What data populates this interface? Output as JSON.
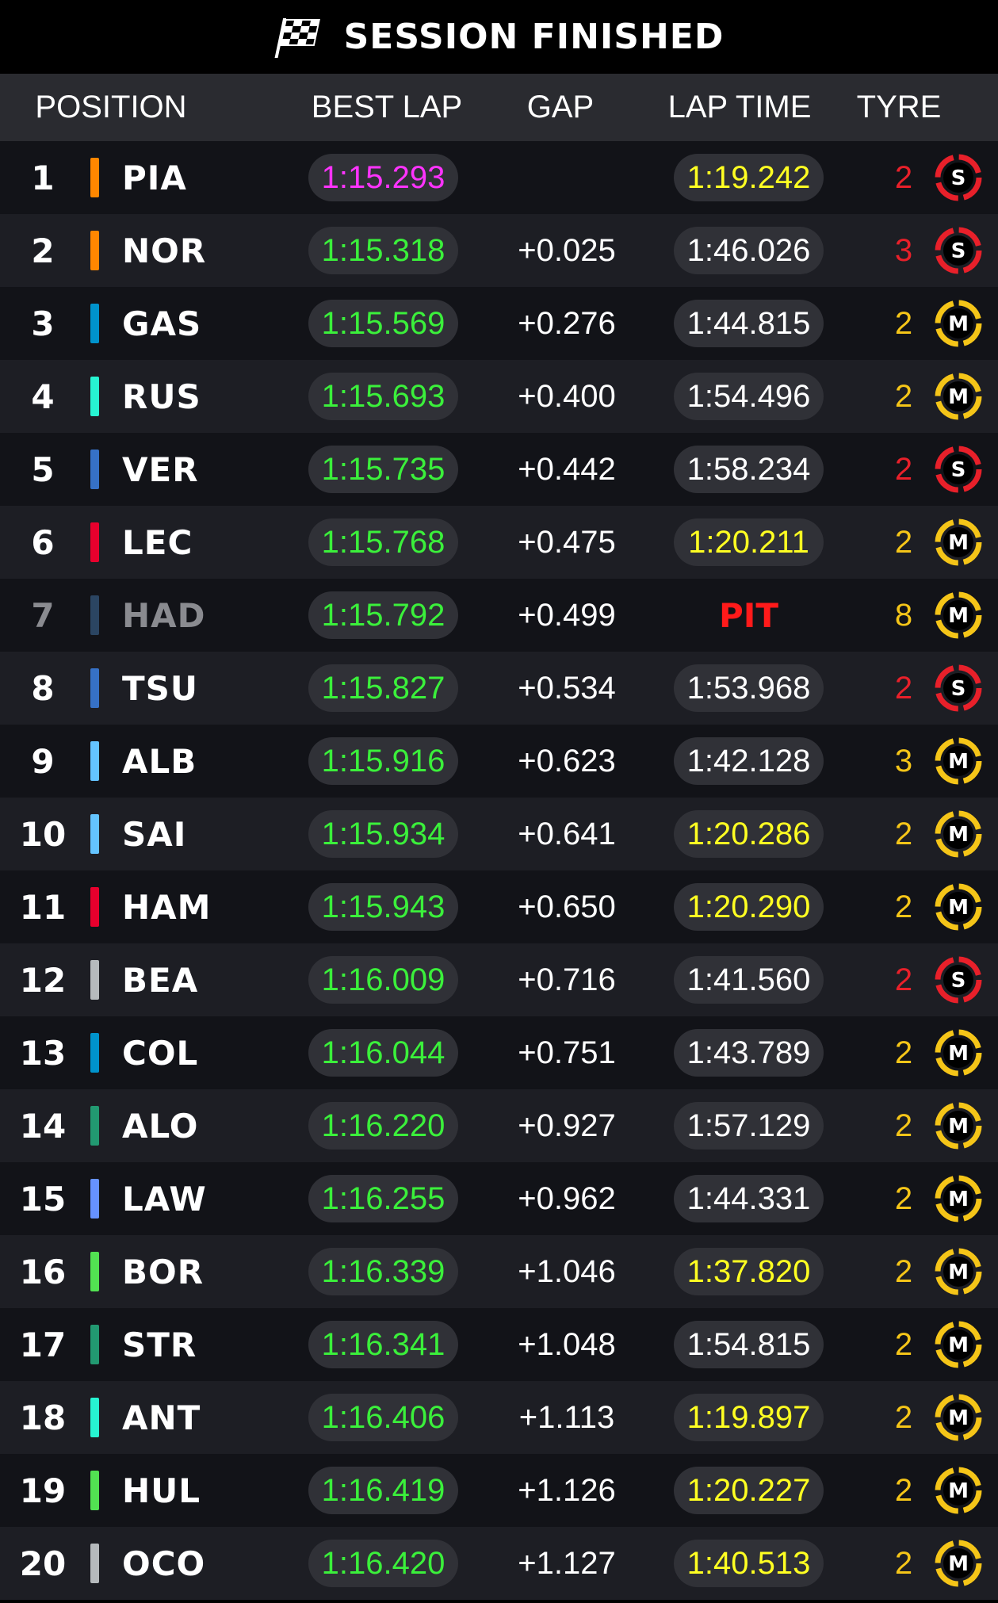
{
  "banner": {
    "title": "SESSION FINISHED",
    "icon": "checkered-flag-icon"
  },
  "header": {
    "position": "POSITION",
    "best_lap": "BEST LAP",
    "gap": "GAP",
    "lap_time": "LAP TIME",
    "tyre": "TYRE"
  },
  "tyre_colors": {
    "S": "#e8202a",
    "M": "#f5c518"
  },
  "rows": [
    {
      "pos": "1",
      "driver": "PIA",
      "team_color": "#ff8700",
      "best": "1:15.293",
      "best_fastest": true,
      "gap": "",
      "lap": "1:19.242",
      "lap_personal": true,
      "tyre_age": "2",
      "tyre": "S"
    },
    {
      "pos": "2",
      "driver": "NOR",
      "team_color": "#ff8700",
      "best": "1:15.318",
      "best_fastest": false,
      "gap": "+0.025",
      "lap": "1:46.026",
      "lap_personal": false,
      "tyre_age": "3",
      "tyre": "S"
    },
    {
      "pos": "3",
      "driver": "GAS",
      "team_color": "#0093cc",
      "best": "1:15.569",
      "best_fastest": false,
      "gap": "+0.276",
      "lap": "1:44.815",
      "lap_personal": false,
      "tyre_age": "2",
      "tyre": "M"
    },
    {
      "pos": "4",
      "driver": "RUS",
      "team_color": "#27f4d2",
      "best": "1:15.693",
      "best_fastest": false,
      "gap": "+0.400",
      "lap": "1:54.496",
      "lap_personal": false,
      "tyre_age": "2",
      "tyre": "M"
    },
    {
      "pos": "5",
      "driver": "VER",
      "team_color": "#3671c6",
      "best": "1:15.735",
      "best_fastest": false,
      "gap": "+0.442",
      "lap": "1:58.234",
      "lap_personal": false,
      "tyre_age": "2",
      "tyre": "S"
    },
    {
      "pos": "6",
      "driver": "LEC",
      "team_color": "#e8002d",
      "best": "1:15.768",
      "best_fastest": false,
      "gap": "+0.475",
      "lap": "1:20.211",
      "lap_personal": true,
      "tyre_age": "2",
      "tyre": "M"
    },
    {
      "pos": "7",
      "driver": "HAD",
      "team_color": "#2b4562",
      "best": "1:15.792",
      "best_fastest": false,
      "gap": "+0.499",
      "lap": "PIT",
      "lap_personal": false,
      "tyre_age": "8",
      "tyre": "M",
      "in_pit": true
    },
    {
      "pos": "8",
      "driver": "TSU",
      "team_color": "#3671c6",
      "best": "1:15.827",
      "best_fastest": false,
      "gap": "+0.534",
      "lap": "1:53.968",
      "lap_personal": false,
      "tyre_age": "2",
      "tyre": "S"
    },
    {
      "pos": "9",
      "driver": "ALB",
      "team_color": "#64c4ff",
      "best": "1:15.916",
      "best_fastest": false,
      "gap": "+0.623",
      "lap": "1:42.128",
      "lap_personal": false,
      "tyre_age": "3",
      "tyre": "M"
    },
    {
      "pos": "10",
      "driver": "SAI",
      "team_color": "#64c4ff",
      "best": "1:15.934",
      "best_fastest": false,
      "gap": "+0.641",
      "lap": "1:20.286",
      "lap_personal": true,
      "tyre_age": "2",
      "tyre": "M"
    },
    {
      "pos": "11",
      "driver": "HAM",
      "team_color": "#e8002d",
      "best": "1:15.943",
      "best_fastest": false,
      "gap": "+0.650",
      "lap": "1:20.290",
      "lap_personal": true,
      "tyre_age": "2",
      "tyre": "M"
    },
    {
      "pos": "12",
      "driver": "BEA",
      "team_color": "#b6babd",
      "best": "1:16.009",
      "best_fastest": false,
      "gap": "+0.716",
      "lap": "1:41.560",
      "lap_personal": false,
      "tyre_age": "2",
      "tyre": "S"
    },
    {
      "pos": "13",
      "driver": "COL",
      "team_color": "#0093cc",
      "best": "1:16.044",
      "best_fastest": false,
      "gap": "+0.751",
      "lap": "1:43.789",
      "lap_personal": false,
      "tyre_age": "2",
      "tyre": "M"
    },
    {
      "pos": "14",
      "driver": "ALO",
      "team_color": "#229971",
      "best": "1:16.220",
      "best_fastest": false,
      "gap": "+0.927",
      "lap": "1:57.129",
      "lap_personal": false,
      "tyre_age": "2",
      "tyre": "M"
    },
    {
      "pos": "15",
      "driver": "LAW",
      "team_color": "#6692ff",
      "best": "1:16.255",
      "best_fastest": false,
      "gap": "+0.962",
      "lap": "1:44.331",
      "lap_personal": false,
      "tyre_age": "2",
      "tyre": "M"
    },
    {
      "pos": "16",
      "driver": "BOR",
      "team_color": "#52e252",
      "best": "1:16.339",
      "best_fastest": false,
      "gap": "+1.046",
      "lap": "1:37.820",
      "lap_personal": true,
      "tyre_age": "2",
      "tyre": "M"
    },
    {
      "pos": "17",
      "driver": "STR",
      "team_color": "#229971",
      "best": "1:16.341",
      "best_fastest": false,
      "gap": "+1.048",
      "lap": "1:54.815",
      "lap_personal": false,
      "tyre_age": "2",
      "tyre": "M"
    },
    {
      "pos": "18",
      "driver": "ANT",
      "team_color": "#27f4d2",
      "best": "1:16.406",
      "best_fastest": false,
      "gap": "+1.113",
      "lap": "1:19.897",
      "lap_personal": true,
      "tyre_age": "2",
      "tyre": "M"
    },
    {
      "pos": "19",
      "driver": "HUL",
      "team_color": "#52e252",
      "best": "1:16.419",
      "best_fastest": false,
      "gap": "+1.126",
      "lap": "1:20.227",
      "lap_personal": true,
      "tyre_age": "2",
      "tyre": "M"
    },
    {
      "pos": "20",
      "driver": "OCO",
      "team_color": "#b6babd",
      "best": "1:16.420",
      "best_fastest": false,
      "gap": "+1.127",
      "lap": "1:40.513",
      "lap_personal": true,
      "tyre_age": "2",
      "tyre": "M"
    }
  ]
}
